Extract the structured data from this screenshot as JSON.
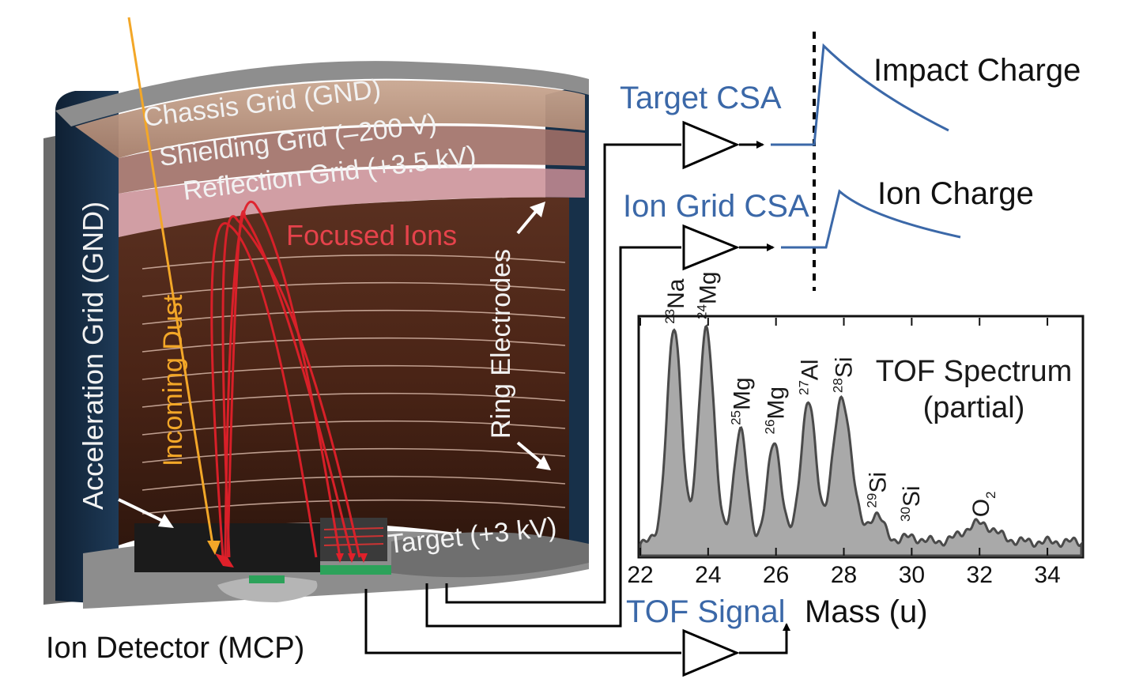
{
  "instrument": {
    "labels": {
      "chassis_grid": "Chassis Grid (GND)",
      "shielding_grid": "Shielding Grid (–200 V)",
      "reflection_grid": "Reflection Grid (+3.5 kV)",
      "focused_ions": "Focused Ions",
      "ring_electrodes": "Ring Electrodes",
      "acceleration_grid": "Acceleration Grid (GND)",
      "incoming_dust": "Incoming Dust",
      "target": "Target (+3 kV)",
      "ion_detector": "Ion Detector (MCP)"
    }
  },
  "signals": {
    "target_csa": "Target CSA",
    "ion_grid_csa": "Ion Grid CSA",
    "impact_charge": "Impact Charge",
    "ion_charge": "Ion Charge",
    "tof_signal": "TOF Signal"
  },
  "colors": {
    "blue": "#3b68a8",
    "red": "#e5424b",
    "gold": "#f3a728",
    "spectrum_fill": "#a9a9a9"
  },
  "chart_data": {
    "type": "area",
    "title": "TOF Spectrum (partial)",
    "title_lines": [
      "TOF Spectrum",
      "(partial)"
    ],
    "xlabel": "Mass (u)",
    "ylabel": "",
    "xlim": [
      22,
      35
    ],
    "xticks": [
      22,
      24,
      26,
      28,
      30,
      32,
      34
    ],
    "peaks": [
      {
        "iso": "23",
        "el": "Na",
        "mass": 23.0,
        "height": 0.98,
        "width": 0.22
      },
      {
        "iso": "24",
        "el": "Mg",
        "mass": 23.95,
        "height": 1.0,
        "width": 0.22
      },
      {
        "iso": "25",
        "el": "Mg",
        "mass": 24.95,
        "height": 0.54,
        "width": 0.2
      },
      {
        "iso": "26",
        "el": "Mg",
        "mass": 25.95,
        "height": 0.5,
        "width": 0.2
      },
      {
        "iso": "27",
        "el": "Al",
        "mass": 26.95,
        "height": 0.67,
        "width": 0.22
      },
      {
        "iso": "28",
        "el": "Si",
        "mass": 27.95,
        "height": 0.68,
        "width": 0.28
      },
      {
        "iso": "29",
        "el": "Si",
        "mass": 28.95,
        "height": 0.18,
        "width": 0.22
      },
      {
        "iso": "30",
        "el": "Si",
        "mass": 29.95,
        "height": 0.08,
        "width": 0.3
      },
      {
        "iso": "",
        "el": "O",
        "sub": "2",
        "mass": 32.0,
        "height": 0.14,
        "width": 0.45
      }
    ],
    "baseline": 0.06
  }
}
